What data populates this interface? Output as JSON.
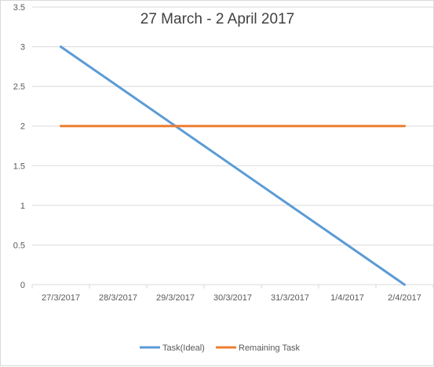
{
  "chart_data": {
    "type": "line",
    "title": "27 March - 2 April 2017",
    "xlabel": "",
    "ylabel": "",
    "categories": [
      "27/3/2017",
      "28/3/2017",
      "29/3/2017",
      "30/3/2017",
      "31/3/2017",
      "1/4/2017",
      "2/4/2017"
    ],
    "ylim": [
      0,
      3.5
    ],
    "yticks": [
      "0",
      "0.5",
      "1",
      "1.5",
      "2",
      "2.5",
      "3",
      "3.5"
    ],
    "grid": true,
    "legend_position": "bottom",
    "series": [
      {
        "name": "Task(Ideal)",
        "color": "#5b9bd5",
        "values": [
          3,
          2.5,
          2,
          1.5,
          1,
          0.5,
          0
        ]
      },
      {
        "name": "Remaining Task",
        "color": "#ed7d31",
        "values": [
          2,
          2,
          2,
          2,
          2,
          2,
          2
        ]
      }
    ]
  }
}
